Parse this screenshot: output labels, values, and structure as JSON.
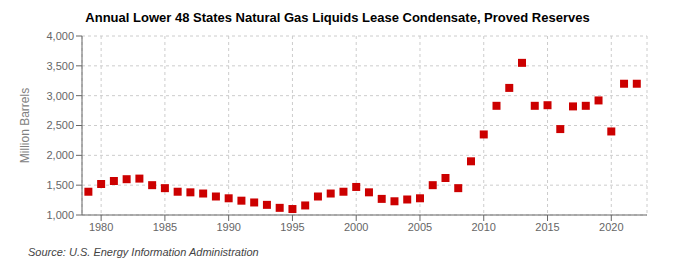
{
  "chart_data": {
    "type": "scatter",
    "title": "Annual Lower 48 States Natural Gas Liquids Lease Condensate, Proved Reserves",
    "ylabel": "Million Barrels",
    "annotations": [
      "Source: U.S. Energy Information Administration"
    ],
    "x": [
      1979,
      1980,
      1981,
      1982,
      1983,
      1984,
      1985,
      1986,
      1987,
      1988,
      1989,
      1990,
      1991,
      1992,
      1993,
      1994,
      1995,
      1996,
      1997,
      1998,
      1999,
      2000,
      2001,
      2002,
      2003,
      2004,
      2005,
      2006,
      2007,
      2008,
      2009,
      2010,
      2011,
      2012,
      2013,
      2014,
      2015,
      2016,
      2017,
      2018,
      2019,
      2020,
      2021,
      2022
    ],
    "values": [
      1390,
      1520,
      1570,
      1600,
      1610,
      1500,
      1450,
      1390,
      1380,
      1360,
      1310,
      1280,
      1240,
      1210,
      1170,
      1120,
      1100,
      1160,
      1310,
      1360,
      1390,
      1470,
      1380,
      1270,
      1230,
      1260,
      1280,
      1500,
      1620,
      1450,
      1900,
      2350,
      2830,
      3130,
      3550,
      2830,
      2840,
      2440,
      2820,
      2830,
      2920,
      2400,
      3200,
      3200
    ],
    "color": "#cc0000",
    "marker": "square",
    "xlim": [
      1978.5,
      2022.8
    ],
    "ylim": [
      1000,
      4000
    ],
    "xticks": [
      1980,
      1985,
      1990,
      1995,
      2000,
      2005,
      2010,
      2015,
      2020
    ],
    "yticks": [
      {
        "value": 1000,
        "label": "1,000"
      },
      {
        "value": 1500,
        "label": "1,500"
      },
      {
        "value": 2000,
        "label": "2,000"
      },
      {
        "value": 2500,
        "label": "2,500"
      },
      {
        "value": 3000,
        "label": "3,000"
      },
      {
        "value": 3500,
        "label": "3,500"
      },
      {
        "value": 4000,
        "label": "4,000"
      }
    ],
    "grid": true
  }
}
